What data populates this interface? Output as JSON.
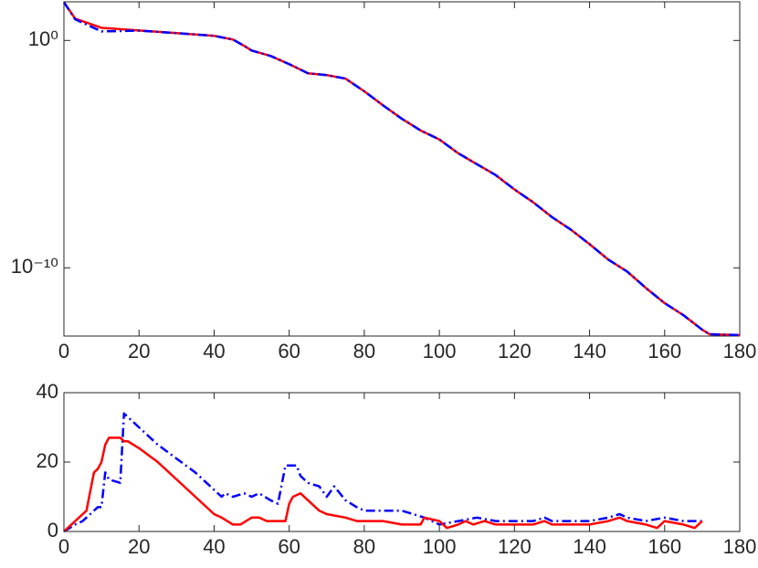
{
  "chart_data": [
    {
      "type": "line",
      "yscale": "log",
      "xlim": [
        0,
        180
      ],
      "ylim": [
        1e-13,
        50
      ],
      "xticks": [
        0,
        20,
        40,
        60,
        80,
        100,
        120,
        140,
        160,
        180
      ],
      "yticks": [
        {
          "value": 1e-10,
          "label": "10⁻¹⁰"
        },
        {
          "value": 1,
          "label": "10⁰"
        }
      ],
      "x": [
        0,
        3,
        10,
        20,
        30,
        40,
        45,
        48,
        50,
        55,
        60,
        65,
        70,
        75,
        80,
        85,
        90,
        95,
        100,
        105,
        110,
        115,
        120,
        125,
        130,
        135,
        140,
        145,
        150,
        155,
        160,
        165,
        170,
        172,
        180
      ],
      "series": [
        {
          "color": "#ff0000",
          "linestyle": "solid",
          "values": [
            47.9,
            9.1,
            3.6,
            2.75,
            2.1,
            1.6,
            1.1,
            0.58,
            0.36,
            0.21,
            0.091,
            0.036,
            0.03,
            0.021,
            0.0058,
            0.0014,
            0.00036,
            0.00011,
            4.4e-05,
            1.1e-05,
            3.6e-06,
            1.2e-06,
            2.8e-07,
            7.6e-08,
            1.7e-08,
            4.8e-09,
            1.1e-09,
            2.3e-10,
            6.9e-11,
            1.3e-11,
            2.8e-12,
            8.3e-13,
            1.9e-13,
            1.2e-13,
            1.1e-13
          ]
        },
        {
          "color": "#0000ff",
          "linestyle": "dashdot",
          "values": [
            47.9,
            8.5,
            2.5,
            2.7,
            2.1,
            1.6,
            1.1,
            0.58,
            0.36,
            0.21,
            0.091,
            0.036,
            0.03,
            0.021,
            0.0058,
            0.0014,
            0.00036,
            0.00011,
            4.4e-05,
            1.1e-05,
            3.6e-06,
            1.2e-06,
            2.8e-07,
            7.6e-08,
            1.7e-08,
            4.8e-09,
            1.1e-09,
            2.3e-10,
            6.9e-11,
            1.3e-11,
            2.8e-12,
            8.3e-13,
            1.9e-13,
            1.2e-13,
            1.1e-13
          ]
        }
      ]
    },
    {
      "type": "line",
      "xlim": [
        0,
        180
      ],
      "ylim": [
        0,
        40
      ],
      "xticks": [
        0,
        20,
        40,
        60,
        80,
        100,
        120,
        140,
        160,
        180
      ],
      "yticks": [
        0,
        20,
        40
      ],
      "series": [
        {
          "color": "#0000ff",
          "linestyle": "dashdot",
          "x": [
            0,
            3,
            5,
            8,
            9,
            10,
            11,
            12,
            15,
            16,
            18,
            20,
            25,
            30,
            35,
            40,
            42,
            43,
            45,
            48,
            50,
            52,
            55,
            57,
            59,
            62,
            63,
            65,
            68,
            70,
            72,
            75,
            78,
            80,
            85,
            90,
            93,
            96,
            100,
            105,
            110,
            115,
            120,
            125,
            128,
            130,
            135,
            140,
            145,
            148,
            150,
            155,
            160,
            165,
            170
          ],
          "values": [
            0,
            2,
            3,
            6,
            7,
            7,
            17,
            15,
            14,
            34,
            32,
            30,
            25,
            21,
            17,
            12,
            10,
            11,
            10,
            11,
            10,
            11,
            9,
            8,
            19,
            19,
            16,
            14,
            13,
            10,
            13,
            9,
            7,
            6,
            6,
            6,
            5,
            4,
            2,
            3,
            4,
            3,
            3,
            3,
            4,
            3,
            3,
            3,
            4,
            5,
            4,
            3,
            4,
            3,
            3
          ]
        },
        {
          "color": "#ff0000",
          "linestyle": "solid",
          "x": [
            0,
            2,
            5,
            6,
            8,
            9,
            10,
            11,
            12,
            15,
            16,
            17,
            20,
            25,
            30,
            35,
            40,
            42,
            45,
            47,
            50,
            52,
            54,
            58,
            59,
            60,
            61,
            63,
            65,
            68,
            70,
            75,
            78,
            85,
            90,
            95,
            96,
            100,
            102,
            105,
            107,
            109,
            112,
            115,
            125,
            128,
            130,
            140,
            145,
            148,
            150,
            155,
            158,
            160,
            165,
            168,
            170
          ],
          "values": [
            0,
            2,
            5,
            6,
            17,
            18,
            20,
            25,
            27,
            27,
            26,
            26,
            24,
            20,
            15,
            10,
            5,
            4,
            2,
            2,
            4,
            4,
            3,
            3,
            3,
            8,
            10,
            11,
            9,
            6,
            5,
            4,
            3,
            3,
            2,
            2,
            4,
            3,
            1,
            2,
            3,
            2,
            3,
            2,
            2,
            3,
            2,
            2,
            3,
            4,
            3,
            2,
            1,
            3,
            2,
            1,
            3
          ]
        }
      ]
    }
  ]
}
